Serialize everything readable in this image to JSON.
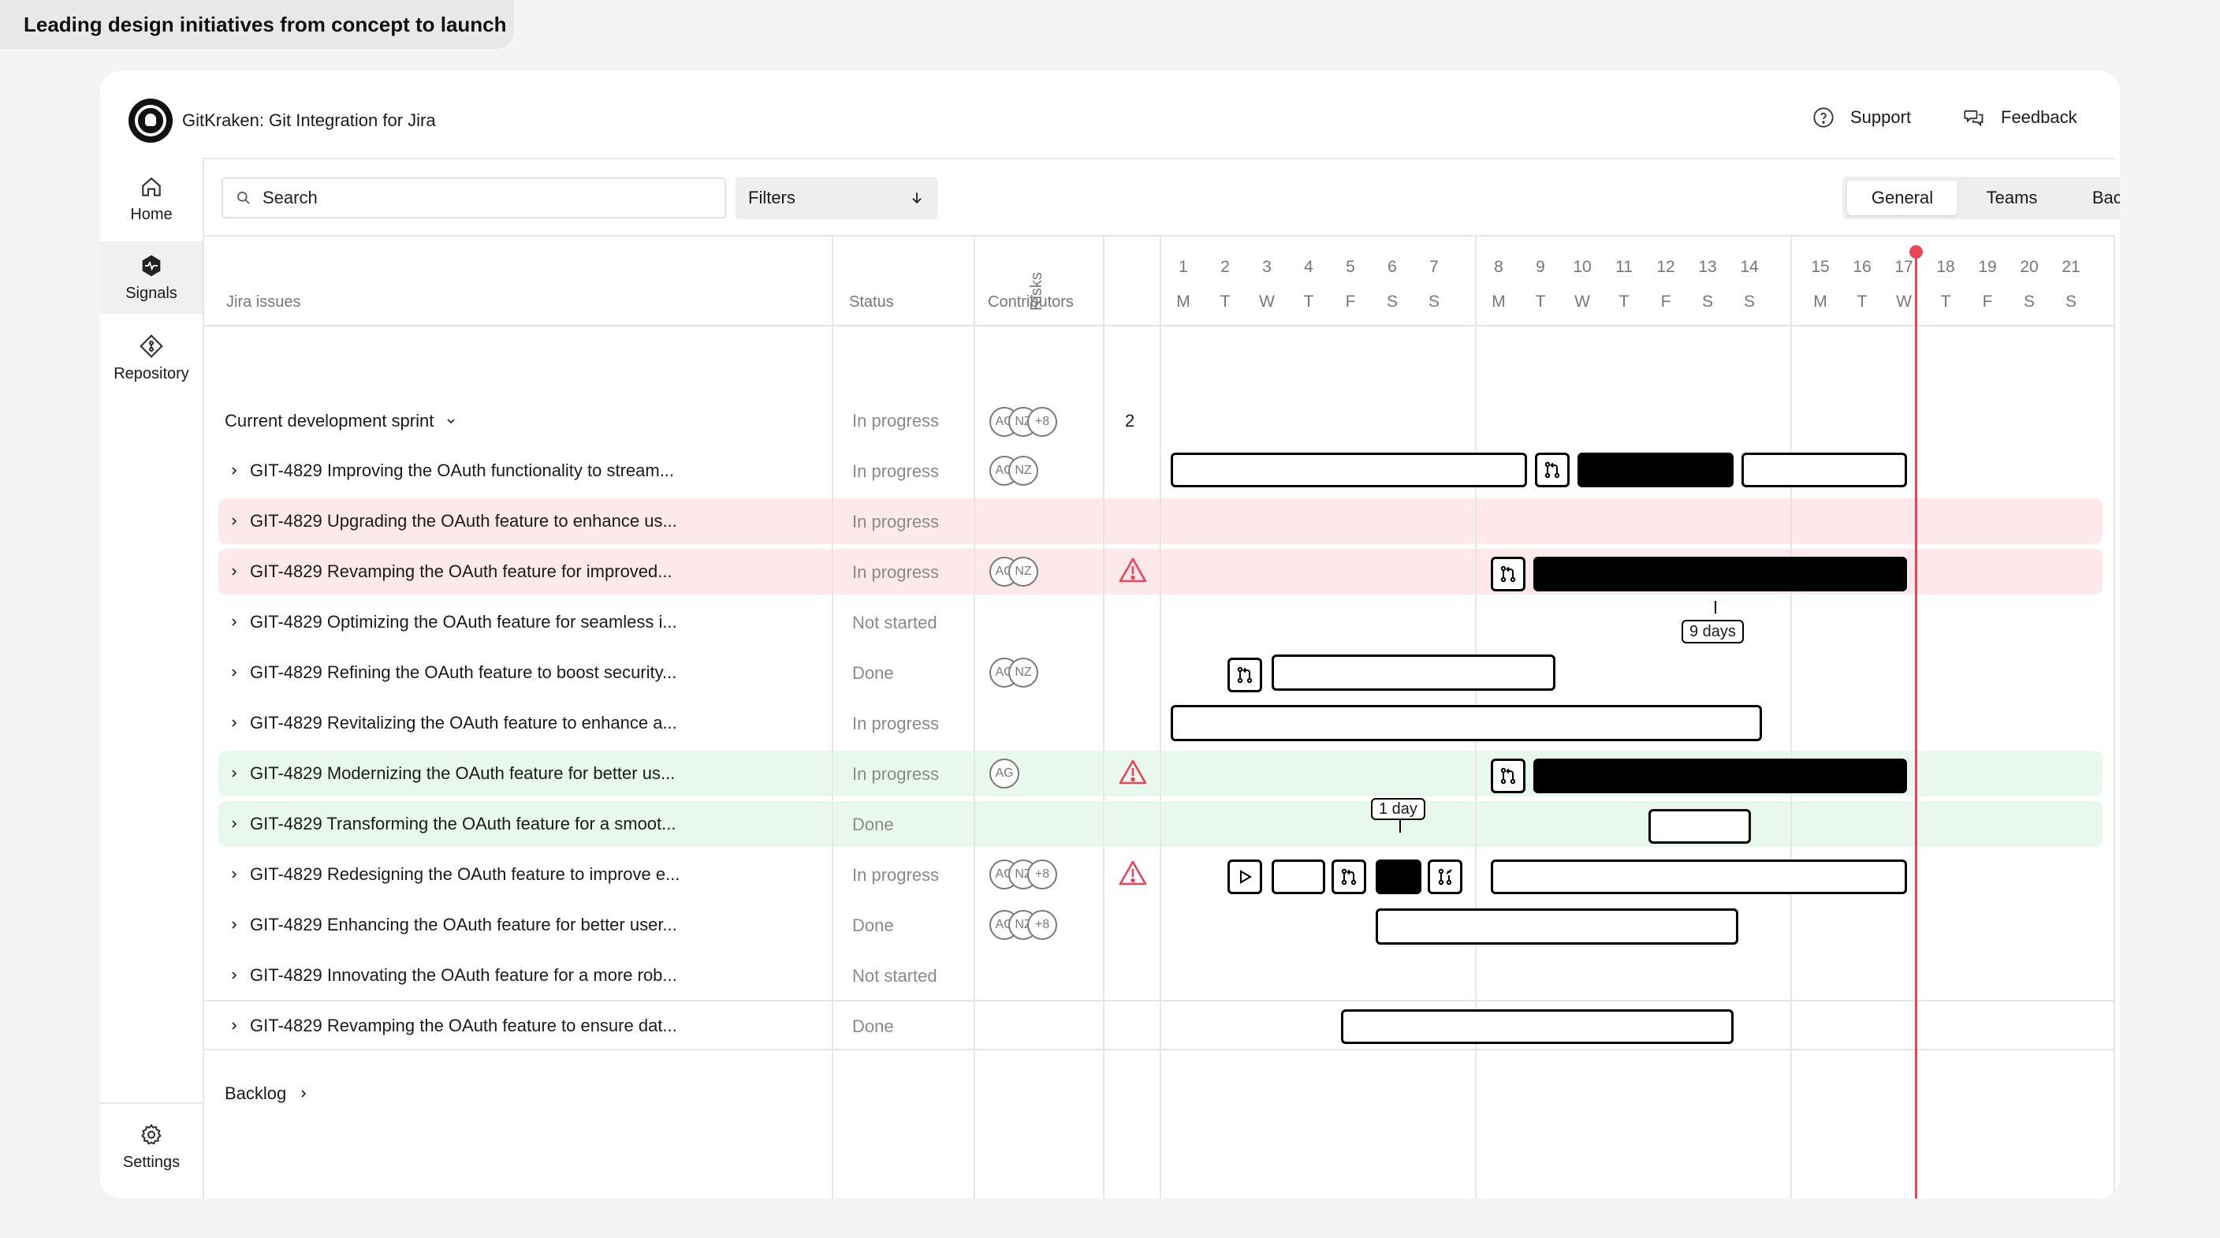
{
  "banner": "Leading design initiatives from concept to launch",
  "app": {
    "title": "GitKraken: Git Integration for Jira"
  },
  "header": {
    "support": "Support",
    "feedback": "Feedback"
  },
  "sidebar": {
    "home": "Home",
    "signals": "Signals",
    "repository": "Repository",
    "settings": "Settings"
  },
  "search": {
    "placeholder": "Search"
  },
  "filters": {
    "label": "Filters"
  },
  "views": {
    "general": "General",
    "teams": "Teams",
    "backlog": "Backlog",
    "active": "General"
  },
  "columns": {
    "issues": "Jira issues",
    "status": "Status",
    "contributors": "Contributors",
    "risks": "Risks"
  },
  "timeline": {
    "days": [
      "1",
      "2",
      "3",
      "4",
      "5",
      "6",
      "7",
      "8",
      "9",
      "10",
      "11",
      "12",
      "13",
      "14",
      "15",
      "16",
      "17",
      "18",
      "19",
      "20",
      "21"
    ],
    "letters": [
      "M",
      "T",
      "W",
      "T",
      "F",
      "S",
      "S",
      "M",
      "T",
      "W",
      "T",
      "F",
      "S",
      "S",
      "M",
      "T",
      "W",
      "T",
      "F",
      "S",
      "S"
    ],
    "today": "17"
  },
  "sprint": {
    "label": "Current development sprint",
    "status": "In progress",
    "contributors": [
      "AG",
      "NZ",
      "+8"
    ],
    "risks": "2"
  },
  "issues": [
    {
      "title": "GIT-4829 Improving the OAuth functionality to stream...",
      "status": "In progress",
      "contributors": [
        "AG",
        "NZ"
      ],
      "risk": false,
      "highlight": ""
    },
    {
      "title": "GIT-4829 Upgrading the OAuth feature to enhance us...",
      "status": "In progress",
      "contributors": [],
      "risk": false,
      "highlight": "red"
    },
    {
      "title": "GIT-4829 Revamping the OAuth feature for improved...",
      "status": "In progress",
      "contributors": [
        "AG",
        "NZ"
      ],
      "risk": true,
      "highlight": "red"
    },
    {
      "title": "GIT-4829 Optimizing the OAuth feature for seamless i...",
      "status": "Not started",
      "contributors": [],
      "risk": false,
      "highlight": ""
    },
    {
      "title": "GIT-4829 Refining the OAuth feature to boost security...",
      "status": "Done",
      "contributors": [
        "AG",
        "NZ"
      ],
      "risk": false,
      "highlight": ""
    },
    {
      "title": "GIT-4829 Revitalizing the OAuth feature to enhance a...",
      "status": "In progress",
      "contributors": [],
      "risk": false,
      "highlight": ""
    },
    {
      "title": "GIT-4829 Modernizing the OAuth feature for better us...",
      "status": "In progress",
      "contributors": [
        "AG"
      ],
      "risk": true,
      "highlight": "green"
    },
    {
      "title": "GIT-4829 Transforming the OAuth feature for a smoot...",
      "status": "Done",
      "contributors": [],
      "risk": false,
      "highlight": "green"
    },
    {
      "title": "GIT-4829 Redesigning the OAuth feature to improve e...",
      "status": "In progress",
      "contributors": [
        "AG",
        "NZ",
        "+8"
      ],
      "risk": true,
      "highlight": ""
    },
    {
      "title": "GIT-4829 Enhancing the OAuth feature for better user...",
      "status": "Done",
      "contributors": [
        "AG",
        "NZ",
        "+8"
      ],
      "risk": false,
      "highlight": ""
    },
    {
      "title": "GIT-4829 Innovating the OAuth feature for a more rob...",
      "status": "Not started",
      "contributors": [],
      "risk": false,
      "highlight": ""
    },
    {
      "title": "GIT-4829 Revamping the OAuth feature to ensure dat...",
      "status": "Done",
      "contributors": [],
      "risk": false,
      "highlight": ""
    }
  ],
  "callouts": {
    "nine_days": "9 days",
    "one_day": "1 day"
  },
  "backlog": {
    "label": "Backlog"
  },
  "colors": {
    "today": "#e8455b",
    "risk_row": "#fde8ea",
    "ok_row": "#e9f8ec",
    "warning": "#e8455b"
  }
}
